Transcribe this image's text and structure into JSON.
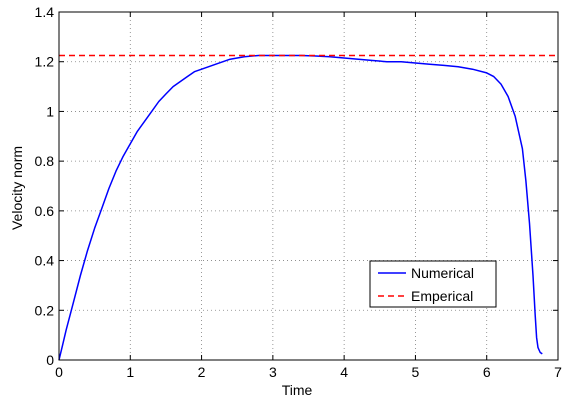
{
  "chart_data": {
    "type": "line",
    "xlabel": "Time",
    "ylabel": "Velocity norm",
    "xlim": [
      0,
      7
    ],
    "ylim": [
      0,
      1.4
    ],
    "xticks": [
      0,
      1,
      2,
      3,
      4,
      5,
      6,
      7
    ],
    "xtick_labels": [
      "0",
      "1",
      "2",
      "3",
      "4",
      "5",
      "6",
      "7"
    ],
    "yticks": [
      0,
      0.2,
      0.4,
      0.6,
      0.8,
      1.0,
      1.2,
      1.4
    ],
    "ytick_labels": [
      "0",
      "0.2",
      "0.4",
      "0.6",
      "0.8",
      "1",
      "1.2",
      "1.4"
    ],
    "grid": true,
    "legend_position": "bottom-right",
    "series": [
      {
        "name": "Numerical",
        "color": "#0000ff",
        "style": "solid",
        "x": [
          0,
          0.05,
          0.1,
          0.2,
          0.3,
          0.4,
          0.5,
          0.6,
          0.7,
          0.8,
          0.9,
          1.0,
          1.1,
          1.2,
          1.3,
          1.4,
          1.5,
          1.6,
          1.7,
          1.8,
          1.9,
          2.0,
          2.2,
          2.4,
          2.6,
          2.8,
          3.0,
          3.2,
          3.4,
          3.6,
          3.8,
          4.0,
          4.2,
          4.4,
          4.6,
          4.8,
          5.0,
          5.2,
          5.4,
          5.6,
          5.8,
          6.0,
          6.1,
          6.2,
          6.3,
          6.4,
          6.5,
          6.55,
          6.6,
          6.65,
          6.68,
          6.7,
          6.72,
          6.75,
          6.78
        ],
        "y": [
          0,
          0.06,
          0.12,
          0.23,
          0.34,
          0.44,
          0.53,
          0.61,
          0.69,
          0.76,
          0.82,
          0.87,
          0.92,
          0.96,
          1.0,
          1.04,
          1.07,
          1.1,
          1.12,
          1.14,
          1.16,
          1.17,
          1.19,
          1.21,
          1.22,
          1.225,
          1.225,
          1.225,
          1.225,
          1.223,
          1.22,
          1.215,
          1.21,
          1.205,
          1.2,
          1.2,
          1.195,
          1.19,
          1.185,
          1.18,
          1.17,
          1.155,
          1.14,
          1.11,
          1.06,
          0.98,
          0.85,
          0.72,
          0.55,
          0.34,
          0.18,
          0.09,
          0.05,
          0.03,
          0.025
        ]
      },
      {
        "name": "Emperical",
        "color": "#ff0000",
        "style": "dashed",
        "x": [
          0,
          7
        ],
        "y": [
          1.225,
          1.225
        ]
      }
    ]
  }
}
